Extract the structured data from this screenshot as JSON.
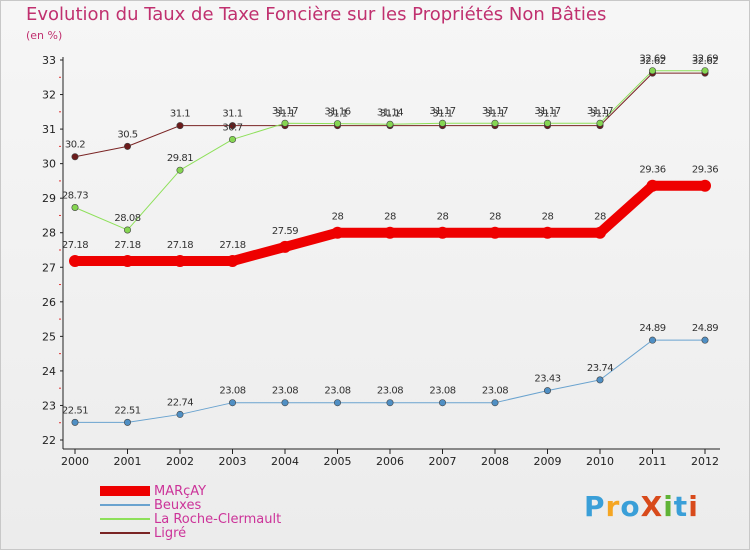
{
  "header": {
    "title": "Evolution du Taux de Taxe Foncière sur les Propriétés Non Bâties",
    "unit": "(en %)"
  },
  "brand": {
    "logo_text": "ProXiti",
    "colors": [
      "#3a9fd8",
      "#f5a623",
      "#3a9fd8",
      "#d84a1b",
      "#5fb336",
      "#3a9fd8",
      "#d84a1b"
    ]
  },
  "chart_data": {
    "type": "line",
    "title": "Evolution du Taux de Taxe Foncière sur les Propriétés Non Bâties",
    "ylabel": "(en %)",
    "xlabel": "",
    "ylim": [
      22,
      33
    ],
    "yticks": [
      "22",
      "23",
      "24",
      "25",
      "26",
      "27",
      "28",
      "29",
      "30",
      "31",
      "32",
      "33"
    ],
    "categories": [
      "2000",
      "2001",
      "2002",
      "2003",
      "2004",
      "2005",
      "2006",
      "2007",
      "2008",
      "2009",
      "2010",
      "2011",
      "2012"
    ],
    "grid": false,
    "legend": "bottom-left",
    "series": [
      {
        "name": "Ligré",
        "color": "#7a2424",
        "marker": "#6b1b1b",
        "width": 1,
        "values": [
          30.2,
          30.5,
          31.1,
          31.1,
          31.1,
          31.1,
          31.1,
          31.1,
          31.1,
          31.1,
          31.1,
          32.62,
          32.62
        ],
        "labels": [
          "30.2",
          "30.5",
          "31.1",
          "31.1",
          "31.1",
          "31.1",
          "31.1",
          "31.1",
          "31.1",
          "31.1",
          "31.1",
          "32.62",
          "32.62"
        ]
      },
      {
        "name": "La Roche-Clermault",
        "color": "#8ee05a",
        "marker": "#86d652",
        "width": 1,
        "values": [
          28.73,
          28.08,
          29.81,
          30.7,
          31.17,
          31.16,
          31.14,
          31.17,
          31.17,
          31.17,
          31.17,
          32.69,
          32.69
        ],
        "labels": [
          "28.73",
          "28.08",
          "29.81",
          "30.7",
          "31.17",
          "31.16",
          "31.14",
          "31.17",
          "31.17",
          "31.17",
          "31.17",
          "32.69",
          "32.69"
        ]
      },
      {
        "name": "Beuxes",
        "color": "#6aa3cf",
        "marker": "#4f8fc4",
        "width": 1,
        "values": [
          22.51,
          22.51,
          22.74,
          23.08,
          23.08,
          23.08,
          23.08,
          23.08,
          23.08,
          23.43,
          23.74,
          24.89,
          24.89
        ],
        "labels": [
          "22.51",
          "22.51",
          "22.74",
          "23.08",
          "23.08",
          "23.08",
          "23.08",
          "23.08",
          "23.08",
          "23.43",
          "23.74",
          "24.89",
          "24.89"
        ]
      },
      {
        "name": "MARçAY",
        "color": "#ee0000",
        "marker": "#ee0000",
        "width": 10,
        "values": [
          27.18,
          27.18,
          27.18,
          27.18,
          27.59,
          28,
          28,
          28,
          28,
          28,
          28,
          29.36,
          29.36
        ],
        "labels": [
          "27.18",
          "27.18",
          "27.18",
          "27.18",
          "27.59",
          "28",
          "28",
          "28",
          "28",
          "28",
          "28",
          "29.36",
          "29.36"
        ]
      }
    ]
  },
  "legend": {
    "items": [
      {
        "label": "MARçAY",
        "color": "#ee0000",
        "thickness": 10,
        "text_color": "#cc3399"
      },
      {
        "label": "Beuxes",
        "color": "#6aa3cf",
        "thickness": 2,
        "text_color": "#cc3399"
      },
      {
        "label": "La Roche-Clermault",
        "color": "#8ee05a",
        "thickness": 2,
        "text_color": "#cc3399"
      },
      {
        "label": "Ligré",
        "color": "#7a2424",
        "thickness": 2,
        "text_color": "#cc3399"
      }
    ]
  }
}
